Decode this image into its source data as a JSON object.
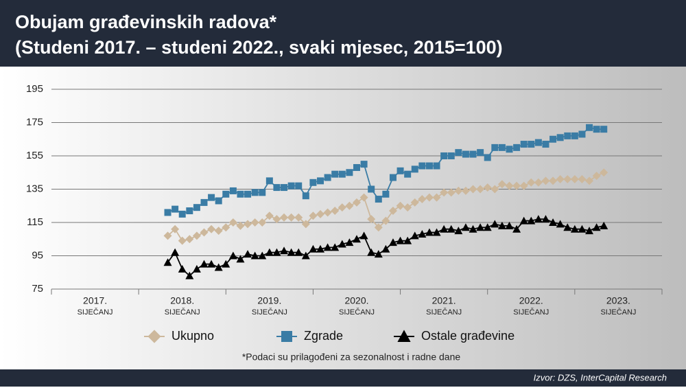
{
  "chart_data": {
    "type": "line",
    "title": "Obujam građevinskih radova*",
    "subtitle": "(Studeni 2017. – studeni 2022., svaki mjesec, 2015=100)",
    "note": "*Podaci su prilagođeni za sezonalnost i radne dane",
    "source": "Izvor: DZS, InterCapital Research",
    "x": [
      "2017-11",
      "2017-12",
      "2018-01",
      "2018-02",
      "2018-03",
      "2018-04",
      "2018-05",
      "2018-06",
      "2018-07",
      "2018-08",
      "2018-09",
      "2018-10",
      "2018-11",
      "2018-12",
      "2019-01",
      "2019-02",
      "2019-03",
      "2019-04",
      "2019-05",
      "2019-06",
      "2019-07",
      "2019-08",
      "2019-09",
      "2019-10",
      "2019-11",
      "2019-12",
      "2020-01",
      "2020-02",
      "2020-03",
      "2020-04",
      "2020-05",
      "2020-06",
      "2020-07",
      "2020-08",
      "2020-09",
      "2020-10",
      "2020-11",
      "2020-12",
      "2021-01",
      "2021-02",
      "2021-03",
      "2021-04",
      "2021-05",
      "2021-06",
      "2021-07",
      "2021-08",
      "2021-09",
      "2021-10",
      "2021-11",
      "2021-12",
      "2022-01",
      "2022-02",
      "2022-03",
      "2022-04",
      "2022-05",
      "2022-06",
      "2022-07",
      "2022-08",
      "2022-09",
      "2022-10",
      "2022-11"
    ],
    "xlim": [
      "2016-07",
      "2023-07"
    ],
    "xticks": [
      {
        "value": "2017-01",
        "label": "2017.",
        "sublabel": "SIJEČANJ"
      },
      {
        "value": "2018-01",
        "label": "2018.",
        "sublabel": "SIJEČANJ"
      },
      {
        "value": "2019-01",
        "label": "2019.",
        "sublabel": "SIJEČANJ"
      },
      {
        "value": "2020-01",
        "label": "2020.",
        "sublabel": "SIJEČANJ"
      },
      {
        "value": "2021-01",
        "label": "2021.",
        "sublabel": "SIJEČANJ"
      },
      {
        "value": "2022-01",
        "label": "2022.",
        "sublabel": "SIJEČANJ"
      },
      {
        "value": "2023-01",
        "label": "2023.",
        "sublabel": "SIJEČANJ"
      }
    ],
    "ylim": [
      75,
      195
    ],
    "yticks": [
      75,
      95,
      115,
      135,
      155,
      175,
      195
    ],
    "grid": true,
    "legend": "bottom",
    "series": [
      {
        "name": "Ukupno",
        "color": "#cdb89c",
        "marker": "diamond",
        "values": [
          107,
          111,
          104,
          105,
          107,
          109,
          111,
          110,
          112,
          115,
          113,
          114,
          115,
          115,
          119,
          117,
          118,
          118,
          118,
          114,
          119,
          120,
          121,
          122,
          124,
          125,
          127,
          130,
          117,
          112,
          116,
          122,
          125,
          124,
          127,
          129,
          130,
          130,
          133,
          133,
          134,
          134,
          135,
          135,
          136,
          135,
          138,
          137,
          137,
          137,
          139,
          139,
          140,
          140,
          141,
          141,
          141,
          141,
          140,
          143,
          145
        ]
      },
      {
        "name": "Zgrade",
        "color": "#3a7ca5",
        "marker": "square",
        "values": [
          121,
          123,
          120,
          122,
          124,
          127,
          130,
          128,
          132,
          134,
          132,
          132,
          133,
          133,
          140,
          136,
          136,
          137,
          137,
          131,
          139,
          140,
          142,
          144,
          144,
          145,
          148,
          150,
          135,
          129,
          132,
          142,
          146,
          144,
          147,
          149,
          149,
          149,
          155,
          155,
          157,
          156,
          156,
          157,
          154,
          160,
          160,
          159,
          160,
          162,
          162,
          163,
          162,
          165,
          166,
          167,
          167,
          168,
          172,
          171,
          171
        ]
      },
      {
        "name": "Ostale građevine",
        "color": "#000000",
        "marker": "triangle",
        "values": [
          91,
          97,
          87,
          83,
          87,
          90,
          90,
          88,
          90,
          95,
          93,
          96,
          95,
          95,
          97,
          97,
          98,
          97,
          97,
          95,
          99,
          99,
          100,
          100,
          102,
          103,
          105,
          107,
          97,
          96,
          99,
          103,
          104,
          104,
          107,
          108,
          109,
          109,
          111,
          111,
          110,
          112,
          111,
          112,
          112,
          114,
          113,
          113,
          111,
          116,
          116,
          117,
          117,
          115,
          114,
          112,
          111,
          111,
          110,
          112,
          113
        ]
      }
    ]
  }
}
